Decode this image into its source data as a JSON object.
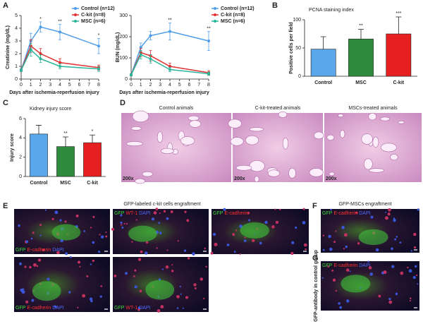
{
  "chart_data": [
    {
      "type": "line",
      "x_label": "Days after ischemia-reperfusion injury",
      "y_label": "Creatinine (mg/dL)",
      "x": [
        0,
        1,
        2,
        4,
        8
      ],
      "xlim": [
        0,
        8
      ],
      "xticks": [
        0,
        1,
        2,
        3,
        4,
        5,
        6,
        7,
        8
      ],
      "ylim": [
        0,
        5
      ],
      "yticks": [
        0,
        1,
        2,
        3,
        4,
        5
      ],
      "series": [
        {
          "name": "Control (n=12)",
          "color": "#4f9ee8",
          "values": [
            0.7,
            3.0,
            4.1,
            3.7,
            2.6
          ],
          "errors": [
            0.1,
            0.6,
            0.4,
            0.6,
            0.6
          ]
        },
        {
          "name": "C-kit (n=8)",
          "color": "#e03030",
          "values": [
            0.7,
            2.6,
            2.0,
            1.3,
            0.9
          ],
          "errors": [
            0.1,
            0.5,
            0.4,
            0.3,
            0.2
          ]
        },
        {
          "name": "MSC (n=6)",
          "color": "#2bb59a",
          "values": [
            0.7,
            2.3,
            1.6,
            1.0,
            0.8
          ],
          "errors": [
            0.1,
            0.5,
            0.3,
            0.2,
            0.2
          ]
        }
      ],
      "annotations": [
        null,
        null,
        "*",
        "**",
        "*"
      ]
    },
    {
      "type": "line",
      "x_label": "Days after ischemia-reperfusion injury",
      "y_label": "BUN (mg/dL)",
      "x": [
        0,
        1,
        2,
        4,
        8
      ],
      "xlim": [
        0,
        8
      ],
      "xticks": [
        0,
        1,
        2,
        3,
        4,
        5,
        6,
        7,
        8
      ],
      "ylim": [
        0,
        300
      ],
      "yticks": [
        0,
        100,
        200,
        300
      ],
      "series": [
        {
          "name": "Control (n=12)",
          "color": "#4f9ee8",
          "values": [
            20,
            150,
            205,
            225,
            180
          ],
          "errors": [
            5,
            20,
            20,
            40,
            45
          ]
        },
        {
          "name": "C-kit (n=8)",
          "color": "#e03030",
          "values": [
            20,
            125,
            110,
            60,
            30
          ],
          "errors": [
            5,
            20,
            25,
            15,
            10
          ]
        },
        {
          "name": "MSC (n=6)",
          "color": "#2bb59a",
          "values": [
            20,
            115,
            95,
            45,
            25
          ],
          "errors": [
            5,
            20,
            20,
            10,
            8
          ]
        }
      ],
      "annotations": [
        null,
        null,
        null,
        "**",
        "**"
      ]
    },
    {
      "type": "bar",
      "title": "PCNA staining index",
      "y_label": "Positive cells per field",
      "categories": [
        "Control",
        "MSC",
        "C-kit"
      ],
      "values": [
        48,
        66,
        75
      ],
      "errors": [
        22,
        17,
        30
      ],
      "colors": [
        "#5aa7ec",
        "#2e8b3e",
        "#e62020"
      ],
      "ylim": [
        0,
        100
      ],
      "yticks": [
        0,
        50,
        100
      ],
      "annotations": [
        null,
        "**",
        "***"
      ]
    },
    {
      "type": "bar",
      "title": "Kidney injury score",
      "y_label": "Injury score",
      "categories": [
        "Control",
        "MSC",
        "C-kit"
      ],
      "values": [
        4.4,
        3.1,
        3.5
      ],
      "errors": [
        0.9,
        1.0,
        0.8
      ],
      "colors": [
        "#5aa7ec",
        "#2e8b3e",
        "#e62020"
      ],
      "ylim": [
        0,
        6
      ],
      "yticks": [
        0,
        2,
        4,
        6
      ],
      "annotations": [
        null,
        "**",
        "*"
      ]
    }
  ],
  "figure": {
    "panel_labels": [
      "A",
      "B",
      "C",
      "D",
      "E",
      "F",
      "G"
    ],
    "d": {
      "captions": [
        "Control  animals",
        "C-kit-treated animals",
        "MSCs-treated animals"
      ],
      "magnifications": [
        "200x",
        "200x",
        "200x"
      ]
    },
    "e": {
      "title": "GFP-labeled c-kit cells engraftment",
      "stains": [
        [
          "GFP",
          "E-cadherin",
          "DAPI"
        ],
        [
          "GFP",
          "WT-1",
          "DAPI"
        ],
        [
          "GFP",
          "E-cadherin"
        ],
        [
          "GFP",
          "E-cadherin",
          "DAPI"
        ],
        [
          "GFP",
          "WT-1",
          "DAPI"
        ]
      ]
    },
    "f": {
      "title": "GFP-MSCs engraftment",
      "stains": [
        "GFP",
        "E-cadherin",
        "DAPI"
      ]
    },
    "g": {
      "stains": [
        "GFP",
        "E-cadherin",
        "DAPI"
      ],
      "side_label": "GFP-antibody in control group"
    }
  }
}
